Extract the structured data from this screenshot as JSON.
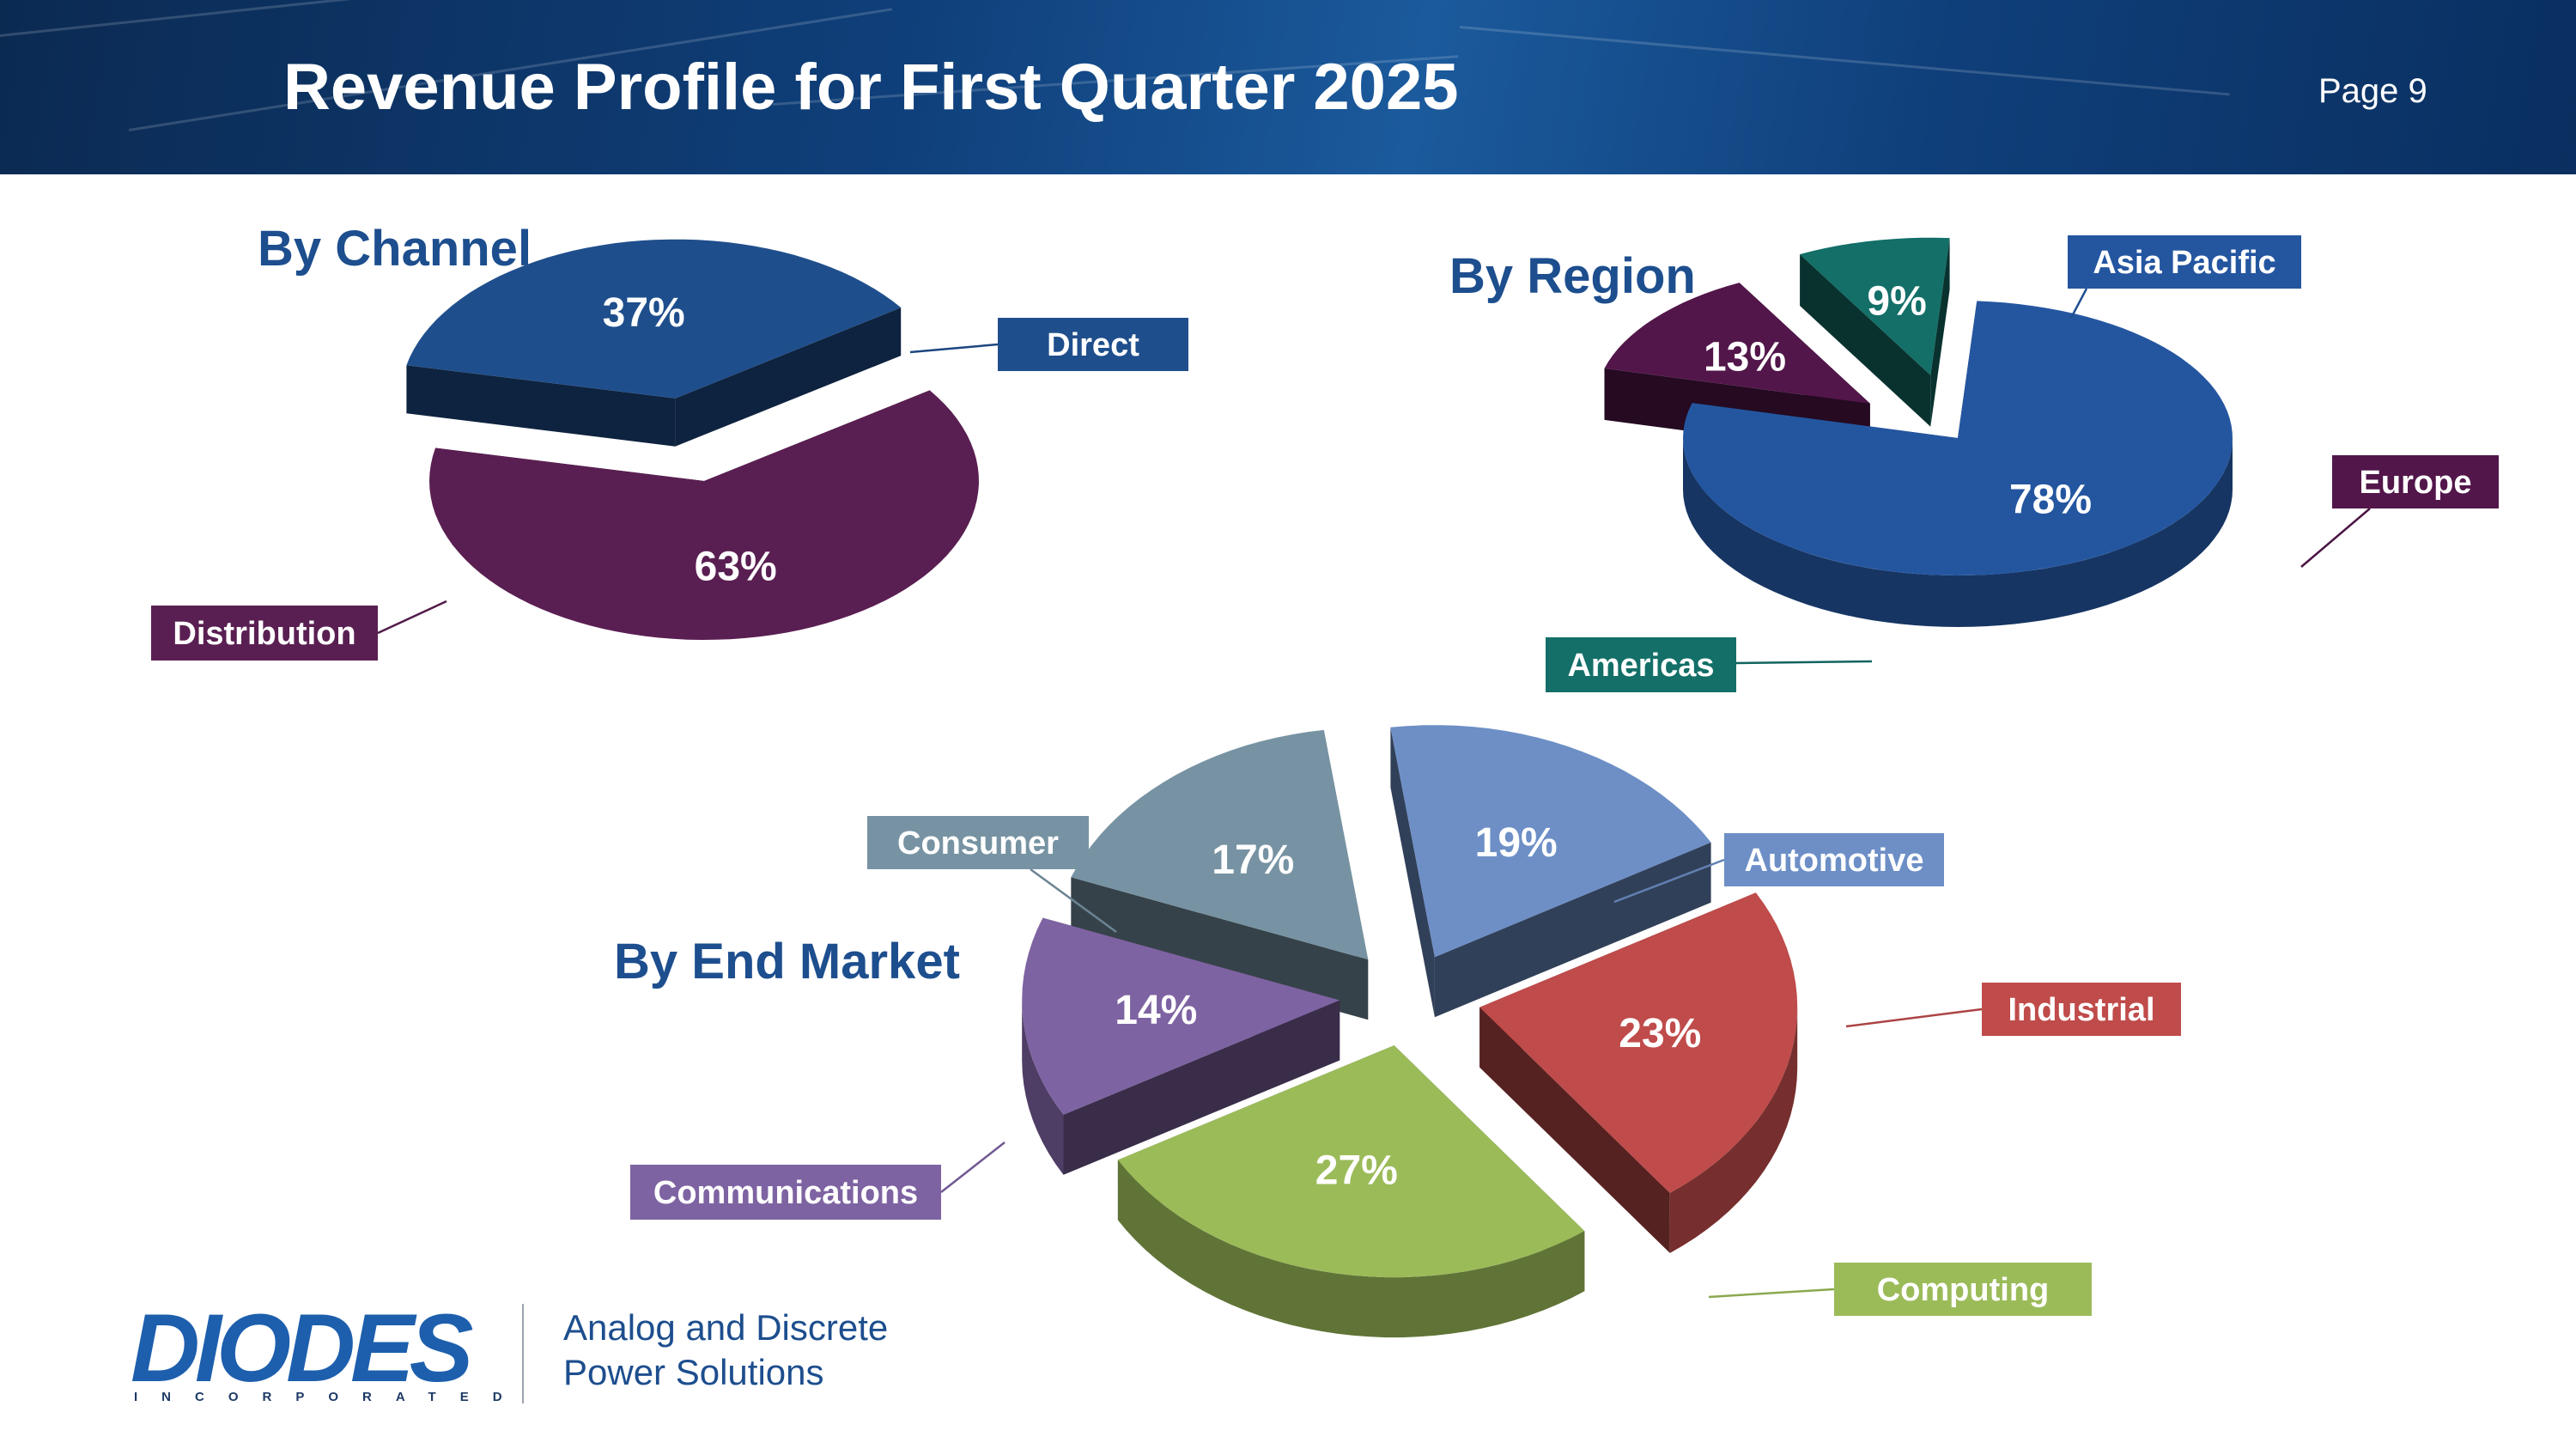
{
  "header": {
    "title": "Revenue Profile for First Quarter 2025",
    "page": "Page 9"
  },
  "sections": {
    "channel": "By Channel",
    "region": "By Region",
    "end_market": "By End Market"
  },
  "footer": {
    "logo_text": "DIODES",
    "logo_subtext": "INCORPORATED",
    "tagline_line1": "Analog and Discrete",
    "tagline_line2": "Power Solutions"
  },
  "chart_data": [
    {
      "type": "pie",
      "title": "By Channel",
      "categories": [
        "Direct",
        "Distribution"
      ],
      "values": [
        37,
        63
      ],
      "value_labels": [
        "37%",
        "63%"
      ],
      "colors": [
        "#1f4e8c",
        "#5a1f52"
      ]
    },
    {
      "type": "pie",
      "title": "By Region",
      "categories": [
        "Asia Pacific",
        "Europe",
        "Americas"
      ],
      "values": [
        78,
        13,
        9
      ],
      "value_labels": [
        "78%",
        "13%",
        "9%"
      ],
      "colors": [
        "#2456a0",
        "#52164a",
        "#136f68"
      ]
    },
    {
      "type": "pie",
      "title": "By End Market",
      "categories": [
        "Automotive",
        "Industrial",
        "Computing",
        "Communications",
        "Consumer"
      ],
      "values": [
        19,
        23,
        27,
        14,
        17
      ],
      "value_labels": [
        "19%",
        "23%",
        "27%",
        "14%",
        "17%"
      ],
      "colors": [
        "#6d8fc6",
        "#bf4b4a",
        "#9bbb59",
        "#7e63a2",
        "#7793a3"
      ]
    }
  ]
}
